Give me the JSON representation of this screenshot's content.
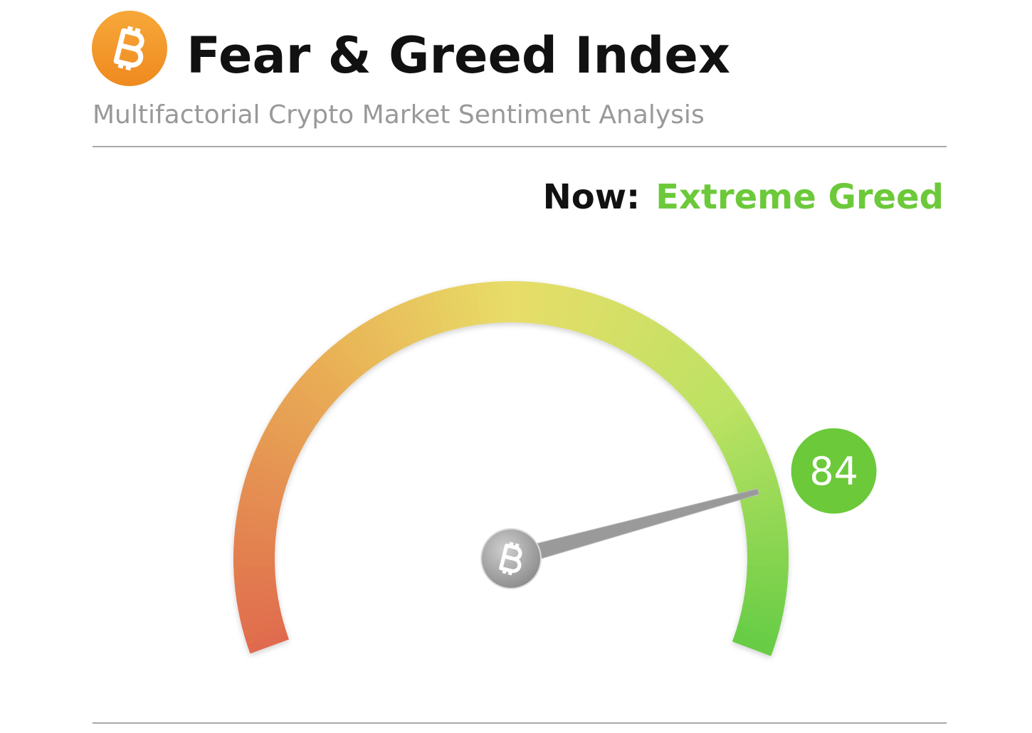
{
  "chart_data": {
    "type": "gauge",
    "title": "Fear & Greed Index",
    "subtitle": "Multifactorial Crypto Market Sentiment Analysis",
    "now_label": "Now:",
    "classification": "Extreme Greed",
    "value": 84,
    "ylim": [
      0,
      100
    ],
    "color": "#6cc93a"
  }
}
